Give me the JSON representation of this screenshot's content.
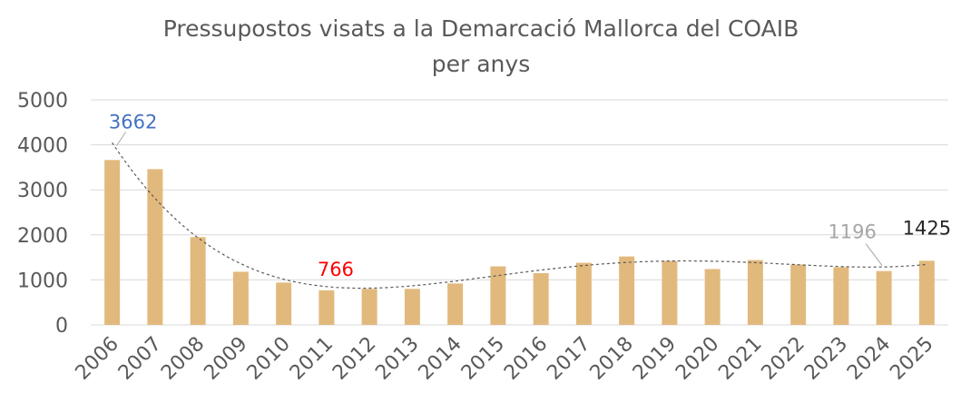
{
  "chart_data": {
    "type": "bar",
    "title": "Pressupostos visats a la Demarcació Mallorca del COAIB",
    "subtitle": "per anys",
    "categories": [
      "2006",
      "2007",
      "2008",
      "2009",
      "2010",
      "2011",
      "2012",
      "2013",
      "2014",
      "2015",
      "2016",
      "2017",
      "2018",
      "2019",
      "2020",
      "2021",
      "2022",
      "2023",
      "2024",
      "2025"
    ],
    "values": [
      3662,
      3460,
      1950,
      1180,
      940,
      766,
      800,
      800,
      920,
      1300,
      1150,
      1380,
      1520,
      1420,
      1240,
      1440,
      1340,
      1280,
      1196,
      1425
    ],
    "ylim": [
      0,
      5000
    ],
    "yticks": [
      0,
      1000,
      2000,
      3000,
      4000,
      5000
    ],
    "grid": true,
    "trendline": "polynomial",
    "colors": {
      "bar": "#e2b97d",
      "trend": "#595959"
    },
    "data_labels": [
      {
        "category": "2006",
        "text": "3662",
        "color": "#4472c4"
      },
      {
        "category": "2011",
        "text": "766",
        "color": "#ff0000"
      },
      {
        "category": "2024",
        "text": "1196",
        "color": "#a6a6a6"
      },
      {
        "category": "2025",
        "text": "1425",
        "color": "#262626"
      }
    ]
  }
}
